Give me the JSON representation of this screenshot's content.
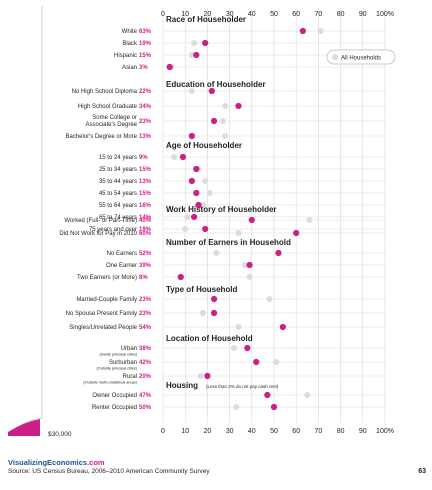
{
  "chart_data": {
    "type": "scatter",
    "x_ticks": [
      "0",
      "10",
      "20",
      "30",
      "40",
      "50",
      "60",
      "70",
      "80",
      "90",
      "100%"
    ],
    "xlim": [
      0,
      100
    ],
    "legend": {
      "label": "All Households",
      "placement": "top-right"
    },
    "colors": {
      "group": "#cc1f8a",
      "all_households": "#dcdcdc",
      "grid": "#d9d9d9",
      "header": "#231f20"
    },
    "sections": [
      {
        "title": "Race of Householder",
        "rows": [
          {
            "label": "White",
            "pct": "63%",
            "value": 63,
            "all": 71
          },
          {
            "label": "Black",
            "pct": "19%",
            "value": 19,
            "all": 14
          },
          {
            "label": "Hispanic",
            "pct": "15%",
            "value": 15,
            "all": 13
          },
          {
            "label": "Asian",
            "pct": "3%",
            "value": 3,
            "all": 4
          }
        ]
      },
      {
        "title": "Education of Householder",
        "rows": [
          {
            "label": "No High School Diploma",
            "pct": "22%",
            "value": 22,
            "all": 13
          },
          {
            "label": "High School Graduate",
            "pct": "34%",
            "value": 34,
            "all": 28
          },
          {
            "label": "Some College or",
            "label2": "Associate's Degree",
            "pct": "23%",
            "value": 23,
            "all": 27
          },
          {
            "label": "Bachelor's Degree or More",
            "pct": "13%",
            "value": 13,
            "all": 28
          }
        ]
      },
      {
        "title": "Age of Householder",
        "rows": [
          {
            "label": "15 to 24 years",
            "pct": "9%",
            "value": 9,
            "all": 5
          },
          {
            "label": "25 to 34 years",
            "pct": "15%",
            "value": 15,
            "all": 16
          },
          {
            "label": "35 to 44 years",
            "pct": "13%",
            "value": 13,
            "all": 19
          },
          {
            "label": "45 to 54 years",
            "pct": "15%",
            "value": 15,
            "all": 21
          },
          {
            "label": "55 to 64 years",
            "pct": "16%",
            "value": 16,
            "all": 18
          },
          {
            "label": "65 to 74 years",
            "pct": "14%",
            "value": 14,
            "all": 11
          },
          {
            "label": "75 years and over",
            "pct": "19%",
            "value": 19,
            "all": 10
          }
        ]
      },
      {
        "title": "Work History of Householder",
        "rows": [
          {
            "label": "Worked (Full- or Part-Time)",
            "pct": "40%",
            "value": 40,
            "all": 66
          },
          {
            "label": "Did Not Work for Pay in 2010",
            "pct": "60%",
            "value": 60,
            "all": 34
          }
        ]
      },
      {
        "title": "Number of Earners in Household",
        "rows": [
          {
            "label": "No Earners",
            "pct": "52%",
            "value": 52,
            "all": 24
          },
          {
            "label": "One Earner",
            "pct": "39%",
            "value": 39,
            "all": 37
          },
          {
            "label": "Two Earners (or More)",
            "pct": "8%",
            "value": 8,
            "all": 39
          }
        ]
      },
      {
        "title": "Type of Household",
        "rows": [
          {
            "label": "Married-Couple Family",
            "pct": "23%",
            "value": 23,
            "all": 48
          },
          {
            "label": "No Spouse Present Family",
            "pct": "23%",
            "value": 23,
            "all": 18
          },
          {
            "label": "Singles/Unrelated People",
            "pct": "54%",
            "value": 54,
            "all": 34
          }
        ]
      },
      {
        "title": "Location of Household",
        "rows": [
          {
            "label": "Urban",
            "sub": "(Inside principal cities)",
            "pct": "38%",
            "value": 38,
            "all": 32
          },
          {
            "label": "Surburban",
            "sub": "(Outside principal cities)",
            "pct": "42%",
            "value": 42,
            "all": 51
          },
          {
            "label": "Rural",
            "sub": "(Outside metro statistical areas)",
            "pct": "20%",
            "value": 20,
            "all": 17
          }
        ]
      },
      {
        "title": "Housing",
        "note": "(Less than 2% do not pay cash rent)",
        "rows": [
          {
            "label": "Owner Occupied",
            "pct": "47%",
            "value": 47,
            "all": 65
          },
          {
            "label": "Renter Occupied",
            "pct": "50%",
            "value": 50,
            "all": 33
          }
        ]
      }
    ]
  },
  "income_marker": "$30,000",
  "footer": {
    "brand_name": "VisualizingEconomics",
    "brand_suffix": ".com",
    "source": "Source: US Census Bureau, 2006–2010 American Community Survey",
    "page_number": "63"
  }
}
